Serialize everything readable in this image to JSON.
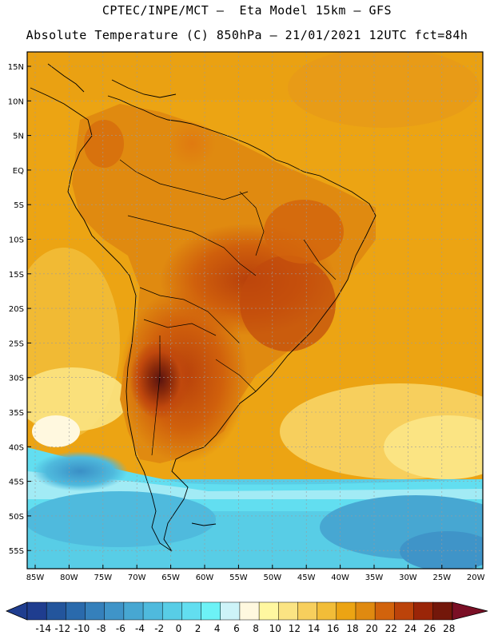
{
  "header": {
    "line1": "CPTEC/INPE/MCT –  Eta Model 15km – GFS",
    "line2": "Absolute Temperature (C) 850hPa – 21/01/2021 12UTC fct=84h"
  },
  "map": {
    "lat_labels": [
      "15N",
      "10N",
      "5N",
      "EQ",
      "5S",
      "10S",
      "15S",
      "20S",
      "25S",
      "30S",
      "35S",
      "40S",
      "45S",
      "50S",
      "55S"
    ],
    "lon_labels": [
      "85W",
      "80W",
      "75W",
      "70W",
      "65W",
      "60W",
      "55W",
      "50W",
      "45W",
      "40W",
      "35W",
      "30W",
      "25W",
      "20W"
    ]
  },
  "colorbar": {
    "labels": [
      "-14",
      "-12",
      "-10",
      "-8",
      "-6",
      "-4",
      "-2",
      "0",
      "2",
      "4",
      "6",
      "8",
      "10",
      "12",
      "14",
      "16",
      "18",
      "20",
      "22",
      "24",
      "26",
      "28"
    ],
    "colors": [
      "#1f3d8f",
      "#23559c",
      "#2a6aac",
      "#3580bb",
      "#3f94c8",
      "#47a7d2",
      "#4fbadd",
      "#58cde6",
      "#62def0",
      "#6df2f6",
      "#cdf3f8",
      "#fff8df",
      "#fff7a0",
      "#fbe483",
      "#f7cf5d",
      "#f2bd38",
      "#eca413",
      "#e08a10",
      "#d2630c",
      "#bc430a",
      "#9a2508",
      "#73170a",
      "#7a0f25"
    ]
  }
}
